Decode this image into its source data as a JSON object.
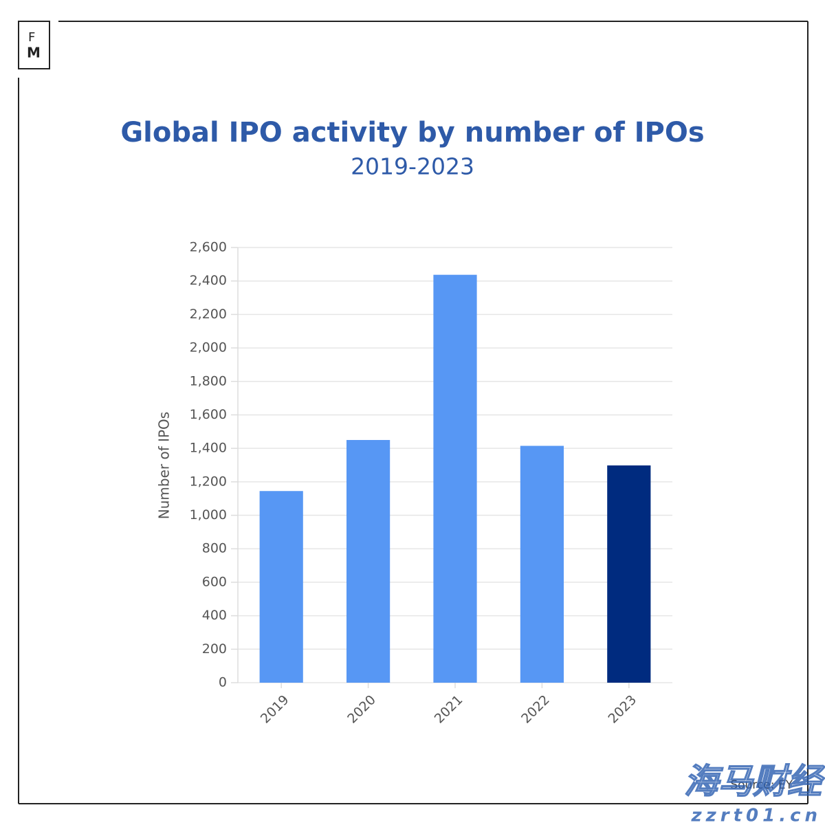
{
  "logo": {
    "top": "F",
    "bottom": "M"
  },
  "chart_data": {
    "type": "bar",
    "title": "Global IPO activity by number of IPOs",
    "subtitle": "2019-2023",
    "y_label": "Number of IPOs",
    "categories": [
      "2019",
      "2020",
      "2021",
      "2022",
      "2023"
    ],
    "values": [
      1145,
      1450,
      2437,
      1415,
      1298
    ],
    "colors": [
      "#5797f4",
      "#5797f4",
      "#5797f4",
      "#5797f4",
      "#002b7f"
    ],
    "ylim": [
      0,
      2600
    ],
    "yticks": [
      0,
      200,
      400,
      600,
      800,
      {
        "value": 1000,
        "label": "1,000"
      },
      {
        "value": 1200,
        "label": "1,200"
      },
      {
        "value": 1400,
        "label": "1,400"
      },
      {
        "value": 1600,
        "label": "1,600"
      },
      {
        "value": 1800,
        "label": "1,800"
      },
      {
        "value": 2000,
        "label": "2,000"
      },
      {
        "value": 2200,
        "label": "2,200"
      },
      {
        "value": 2400,
        "label": "2,400"
      },
      {
        "value": 2600,
        "label": "2,600"
      }
    ],
    "grid": true,
    "source": "Source: EY"
  },
  "watermark": {
    "name": "海马财经",
    "site": "zzrt01.cn"
  }
}
